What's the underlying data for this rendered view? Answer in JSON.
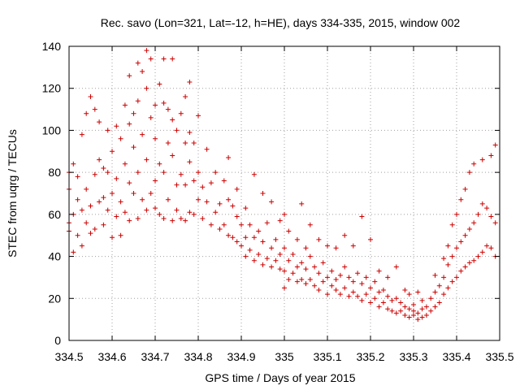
{
  "chart_data": {
    "type": "scatter",
    "title": "Rec. savo (Lon=321, Lat=-12, h=HE), days 334-335, 2015, window 002",
    "xlabel": "GPS time / Days of year 2015",
    "ylabel": "STEC from uqrg / TECUs",
    "xlim": [
      334.5,
      335.5
    ],
    "ylim": [
      0,
      140
    ],
    "grid": true,
    "marker": "+",
    "xticks": [
      "334.5",
      "334.6",
      "334.7",
      "334.8",
      "334.9",
      "335",
      "335.1",
      "335.2",
      "335.3",
      "335.4",
      "335.5"
    ],
    "yticks": [
      "0",
      "20",
      "40",
      "60",
      "80",
      "100",
      "120",
      "140"
    ],
    "series": [
      {
        "color": "#cc0000",
        "points": [
          [
            334.5,
            56
          ],
          [
            334.5,
            72
          ],
          [
            334.5,
            80
          ],
          [
            334.5,
            52
          ],
          [
            334.51,
            42
          ],
          [
            334.51,
            60
          ],
          [
            334.51,
            84
          ],
          [
            334.52,
            50
          ],
          [
            334.52,
            67
          ],
          [
            334.52,
            78
          ],
          [
            334.53,
            45
          ],
          [
            334.53,
            62
          ],
          [
            334.53,
            98
          ],
          [
            334.54,
            56
          ],
          [
            334.54,
            72
          ],
          [
            334.54,
            108
          ],
          [
            334.55,
            116
          ],
          [
            334.55,
            51
          ],
          [
            334.55,
            64
          ],
          [
            334.56,
            53
          ],
          [
            334.56,
            79
          ],
          [
            334.56,
            110
          ],
          [
            334.57,
            66
          ],
          [
            334.57,
            86
          ],
          [
            334.57,
            104
          ],
          [
            334.58,
            55
          ],
          [
            334.58,
            68
          ],
          [
            334.58,
            82
          ],
          [
            334.59,
            62
          ],
          [
            334.59,
            80
          ],
          [
            334.59,
            100
          ],
          [
            334.6,
            49
          ],
          [
            334.6,
            70
          ],
          [
            334.6,
            90
          ],
          [
            334.61,
            59
          ],
          [
            334.61,
            77
          ],
          [
            334.61,
            102
          ],
          [
            334.62,
            50
          ],
          [
            334.62,
            66
          ],
          [
            334.62,
            96
          ],
          [
            334.63,
            61
          ],
          [
            334.63,
            84
          ],
          [
            334.63,
            112
          ],
          [
            334.64,
            57
          ],
          [
            334.64,
            75
          ],
          [
            334.64,
            103
          ],
          [
            334.64,
            126
          ],
          [
            334.65,
            70
          ],
          [
            334.65,
            92
          ],
          [
            334.65,
            108
          ],
          [
            334.66,
            58
          ],
          [
            334.66,
            80
          ],
          [
            334.66,
            114
          ],
          [
            334.66,
            132
          ],
          [
            334.67,
            67
          ],
          [
            334.67,
            98
          ],
          [
            334.67,
            128
          ],
          [
            334.68,
            62
          ],
          [
            334.68,
            86
          ],
          [
            334.68,
            120
          ],
          [
            334.68,
            138
          ],
          [
            334.69,
            70
          ],
          [
            334.69,
            106
          ],
          [
            334.69,
            134
          ],
          [
            334.7,
            63
          ],
          [
            334.7,
            76
          ],
          [
            334.7,
            96
          ],
          [
            334.7,
            112
          ],
          [
            334.71,
            60
          ],
          [
            334.71,
            84
          ],
          [
            334.71,
            122
          ],
          [
            334.72,
            58
          ],
          [
            334.72,
            80
          ],
          [
            334.72,
            113
          ],
          [
            334.72,
            134
          ],
          [
            334.73,
            67
          ],
          [
            334.73,
            94
          ],
          [
            334.73,
            110
          ],
          [
            334.74,
            57
          ],
          [
            334.74,
            88
          ],
          [
            334.74,
            105
          ],
          [
            334.74,
            134
          ],
          [
            334.75,
            62
          ],
          [
            334.75,
            74
          ],
          [
            334.75,
            100
          ],
          [
            334.76,
            58
          ],
          [
            334.76,
            79
          ],
          [
            334.76,
            108
          ],
          [
            334.77,
            57
          ],
          [
            334.77,
            74
          ],
          [
            334.77,
            94
          ],
          [
            334.77,
            116
          ],
          [
            334.78,
            61
          ],
          [
            334.78,
            85
          ],
          [
            334.78,
            99
          ],
          [
            334.78,
            123
          ],
          [
            334.79,
            60
          ],
          [
            334.79,
            76
          ],
          [
            334.79,
            94
          ],
          [
            334.8,
            67
          ],
          [
            334.8,
            80
          ],
          [
            334.8,
            107
          ],
          [
            334.81,
            58
          ],
          [
            334.81,
            73
          ],
          [
            334.82,
            66
          ],
          [
            334.82,
            91
          ],
          [
            334.83,
            55
          ],
          [
            334.83,
            75
          ],
          [
            334.84,
            61
          ],
          [
            334.84,
            80
          ],
          [
            334.85,
            53
          ],
          [
            334.85,
            65
          ],
          [
            334.86,
            55
          ],
          [
            334.86,
            76
          ],
          [
            334.87,
            50
          ],
          [
            334.87,
            67
          ],
          [
            334.87,
            87
          ],
          [
            334.88,
            49
          ],
          [
            334.88,
            64
          ],
          [
            334.89,
            47
          ],
          [
            334.89,
            59
          ],
          [
            334.89,
            72
          ],
          [
            334.9,
            45
          ],
          [
            334.9,
            55
          ],
          [
            334.91,
            40
          ],
          [
            334.91,
            49
          ],
          [
            334.91,
            63
          ],
          [
            334.92,
            43
          ],
          [
            334.92,
            55
          ],
          [
            334.93,
            38
          ],
          [
            334.93,
            49
          ],
          [
            334.93,
            79
          ],
          [
            334.94,
            41
          ],
          [
            334.94,
            52
          ],
          [
            334.95,
            36
          ],
          [
            334.95,
            47
          ],
          [
            334.95,
            70
          ],
          [
            334.96,
            39
          ],
          [
            334.96,
            56
          ],
          [
            334.97,
            35
          ],
          [
            334.97,
            44
          ],
          [
            334.97,
            66
          ],
          [
            334.98,
            38
          ],
          [
            334.98,
            48
          ],
          [
            334.99,
            34
          ],
          [
            334.99,
            41
          ],
          [
            334.99,
            57
          ],
          [
            335.0,
            25
          ],
          [
            335.0,
            33
          ],
          [
            335.0,
            44
          ],
          [
            335.0,
            60
          ],
          [
            335.01,
            29
          ],
          [
            335.01,
            38
          ],
          [
            335.01,
            52
          ],
          [
            335.02,
            32
          ],
          [
            335.02,
            41
          ],
          [
            335.03,
            28
          ],
          [
            335.03,
            35
          ],
          [
            335.03,
            48
          ],
          [
            335.04,
            29
          ],
          [
            335.04,
            37
          ],
          [
            335.04,
            65
          ],
          [
            335.05,
            27
          ],
          [
            335.05,
            34
          ],
          [
            335.05,
            44
          ],
          [
            335.06,
            29
          ],
          [
            335.06,
            40
          ],
          [
            335.06,
            55
          ],
          [
            335.07,
            26
          ],
          [
            335.07,
            35
          ],
          [
            335.08,
            24
          ],
          [
            335.08,
            32
          ],
          [
            335.08,
            48
          ],
          [
            335.09,
            28
          ],
          [
            335.09,
            37
          ],
          [
            335.1,
            22
          ],
          [
            335.1,
            30
          ],
          [
            335.1,
            45
          ],
          [
            335.11,
            26
          ],
          [
            335.11,
            33
          ],
          [
            335.12,
            24
          ],
          [
            335.12,
            29
          ],
          [
            335.12,
            44
          ],
          [
            335.13,
            22
          ],
          [
            335.13,
            31
          ],
          [
            335.14,
            25
          ],
          [
            335.14,
            35
          ],
          [
            335.14,
            50
          ],
          [
            335.15,
            21
          ],
          [
            335.15,
            30
          ],
          [
            335.16,
            23
          ],
          [
            335.16,
            28
          ],
          [
            335.16,
            45
          ],
          [
            335.17,
            21
          ],
          [
            335.17,
            32
          ],
          [
            335.18,
            19
          ],
          [
            335.18,
            27
          ],
          [
            335.18,
            59
          ],
          [
            335.19,
            22
          ],
          [
            335.19,
            30
          ],
          [
            335.2,
            18
          ],
          [
            335.2,
            25
          ],
          [
            335.2,
            48
          ],
          [
            335.21,
            20
          ],
          [
            335.21,
            28
          ],
          [
            335.22,
            16
          ],
          [
            335.22,
            23
          ],
          [
            335.22,
            33
          ],
          [
            335.23,
            18
          ],
          [
            335.23,
            24
          ],
          [
            335.24,
            15
          ],
          [
            335.24,
            21
          ],
          [
            335.24,
            30
          ],
          [
            335.25,
            14
          ],
          [
            335.25,
            19
          ],
          [
            335.26,
            13
          ],
          [
            335.26,
            20
          ],
          [
            335.26,
            35
          ],
          [
            335.27,
            14
          ],
          [
            335.27,
            18
          ],
          [
            335.28,
            12
          ],
          [
            335.28,
            16
          ],
          [
            335.28,
            24
          ],
          [
            335.29,
            11
          ],
          [
            335.29,
            15
          ],
          [
            335.29,
            22
          ],
          [
            335.3,
            12
          ],
          [
            335.3,
            14
          ],
          [
            335.3,
            17
          ],
          [
            335.31,
            10
          ],
          [
            335.31,
            13
          ],
          [
            335.31,
            23
          ],
          [
            335.32,
            11
          ],
          [
            335.32,
            15
          ],
          [
            335.32,
            19
          ],
          [
            335.33,
            12
          ],
          [
            335.33,
            16
          ],
          [
            335.34,
            14
          ],
          [
            335.34,
            20
          ],
          [
            335.35,
            16
          ],
          [
            335.35,
            23
          ],
          [
            335.35,
            31
          ],
          [
            335.36,
            18
          ],
          [
            335.36,
            26
          ],
          [
            335.37,
            22
          ],
          [
            335.37,
            30
          ],
          [
            335.37,
            39
          ],
          [
            335.38,
            25
          ],
          [
            335.38,
            36
          ],
          [
            335.38,
            45
          ],
          [
            335.39,
            28
          ],
          [
            335.39,
            40
          ],
          [
            335.39,
            55
          ],
          [
            335.4,
            30
          ],
          [
            335.4,
            44
          ],
          [
            335.4,
            60
          ],
          [
            335.41,
            33
          ],
          [
            335.41,
            47
          ],
          [
            335.41,
            67
          ],
          [
            335.42,
            35
          ],
          [
            335.42,
            50
          ],
          [
            335.42,
            72
          ],
          [
            335.43,
            37
          ],
          [
            335.43,
            53
          ],
          [
            335.43,
            80
          ],
          [
            335.44,
            38
          ],
          [
            335.44,
            56
          ],
          [
            335.44,
            84
          ],
          [
            335.45,
            40
          ],
          [
            335.45,
            60
          ],
          [
            335.46,
            42
          ],
          [
            335.46,
            65
          ],
          [
            335.46,
            86
          ],
          [
            335.47,
            45
          ],
          [
            335.47,
            63
          ],
          [
            335.48,
            44
          ],
          [
            335.48,
            59
          ],
          [
            335.48,
            88
          ],
          [
            335.49,
            40
          ],
          [
            335.49,
            56
          ],
          [
            335.49,
            93
          ]
        ]
      }
    ]
  }
}
